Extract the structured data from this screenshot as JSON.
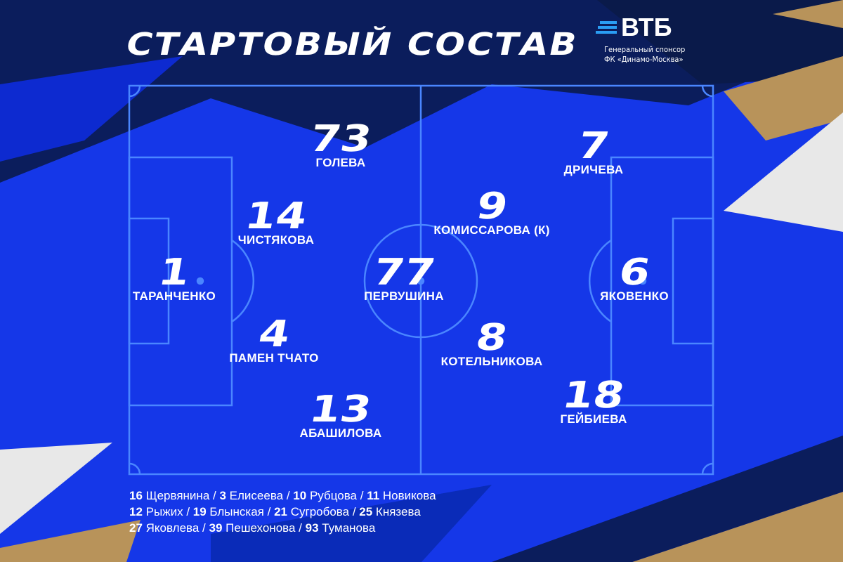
{
  "title": "СТАРТОВЫЙ СОСТАВ",
  "sponsor": {
    "logo": "ВТБ",
    "line1": "Генеральный спонсор",
    "line2": "ФК «Динамо-Москва»"
  },
  "colors": {
    "background": "#1537e8",
    "dark": "#0a1a4a",
    "gold": "#b8935a",
    "line": "#3f7bff"
  },
  "players": [
    {
      "num": "73",
      "name": "ГОЛЕВА"
    },
    {
      "num": "7",
      "name": "ДРИЧЕВА"
    },
    {
      "num": "14",
      "name": "ЧИСТЯКОВА"
    },
    {
      "num": "9",
      "name": "КОМИССАРОВА (К)"
    },
    {
      "num": "1",
      "name": "ТАРАНЧЕНКО"
    },
    {
      "num": "77",
      "name": "ПЕРВУШИНА"
    },
    {
      "num": "6",
      "name": "ЯКОВЕНКО"
    },
    {
      "num": "4",
      "name": "ПАМЕН ТЧАТО"
    },
    {
      "num": "8",
      "name": "КОТЕЛЬНИКОВА"
    },
    {
      "num": "18",
      "name": "ГЕЙБИЕВА"
    },
    {
      "num": "13",
      "name": "АБАШИЛОВА"
    }
  ],
  "bench": [
    [
      {
        "num": "16",
        "name": "Щервянина "
      },
      {
        "num": "3",
        "name": "Елисеева"
      },
      {
        "num": "10",
        "name": "Рубцова"
      },
      {
        "num": "11",
        "name": "Новикова"
      }
    ],
    [
      {
        "num": "12",
        "name": "Рыжих"
      },
      {
        "num": "19",
        "name": "Блынская"
      },
      {
        "num": "21",
        "name": "Сугробова"
      },
      {
        "num": "25",
        "name": "Князева"
      }
    ],
    [
      {
        "num": "27",
        "name": "Яковлева"
      },
      {
        "num": "39",
        "name": "Пешехонова"
      },
      {
        "num": "93",
        "name": "Туманова"
      }
    ]
  ]
}
